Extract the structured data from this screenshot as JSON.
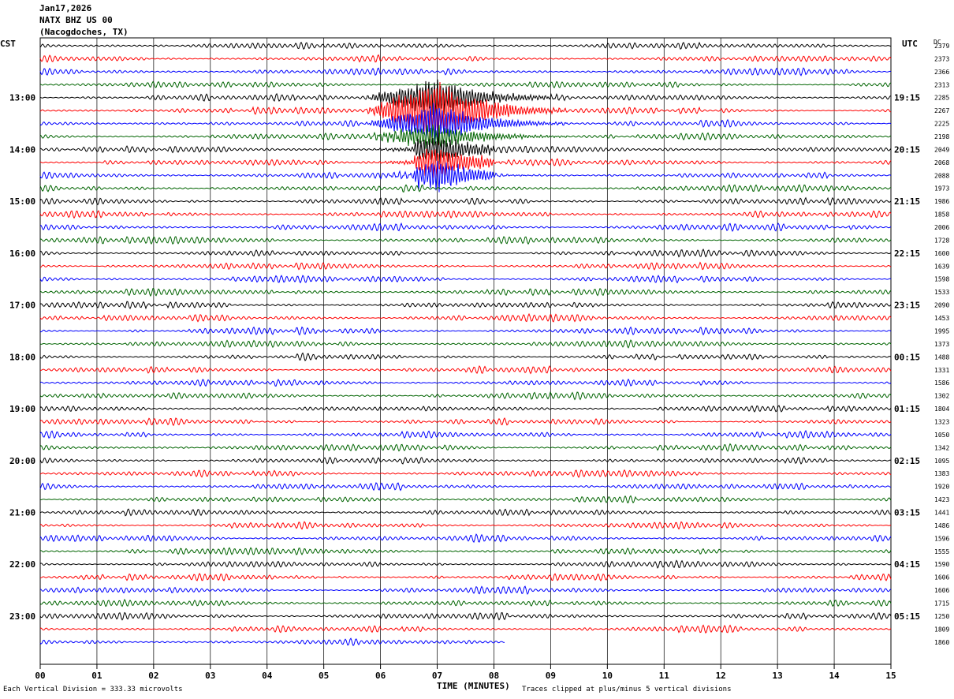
{
  "header": {
    "date": "Jan17,2026",
    "station": "NATX BHZ US 00",
    "location": "(Nacogdoches, TX)"
  },
  "left_axis_label": "CST",
  "right_axis_label": "UTC",
  "dc_label": "DC",
  "footer": {
    "scale_note": "Each Vertical Division =  333.33 microvolts",
    "x_title": "TIME (MINUTES)",
    "clip_note": "Traces clipped at plus/minus 5 vertical divisions"
  },
  "colors": {
    "trace_cycle": [
      "#000000",
      "#ff0000",
      "#0000ff",
      "#006400"
    ],
    "grid": "#000000"
  },
  "chart_data": {
    "type": "line",
    "xlabel": "TIME (MINUTES)",
    "xlim": [
      0,
      15
    ],
    "x_ticks": [
      "00",
      "01",
      "02",
      "03",
      "04",
      "05",
      "06",
      "07",
      "08",
      "09",
      "10",
      "11",
      "12",
      "13",
      "14",
      "15"
    ],
    "left_hour_labels": [
      "13:00",
      "14:00",
      "15:00",
      "16:00",
      "17:00",
      "18:00",
      "19:00",
      "20:00",
      "21:00",
      "22:00",
      "23:00"
    ],
    "right_hour_labels": [
      "19:15",
      "20:15",
      "21:15",
      "22:15",
      "23:15",
      "00:15",
      "01:15",
      "02:15",
      "03:15",
      "04:15",
      "05:15"
    ],
    "traces_per_hour": 4,
    "first_trace_offset_from_hour": -4,
    "trace_count": 47,
    "last_trace_end_minute": 8.2,
    "dc_values": [
      "2379",
      "2373",
      "2366",
      "2313",
      "2285",
      "2267",
      "2225",
      "2198",
      "2049",
      "2068",
      "2088",
      "1973",
      "1986",
      "1858",
      "2006",
      "1728",
      "1600",
      "1639",
      "1598",
      "1533",
      "2090",
      "1453",
      "1995",
      "1373",
      "1488",
      "1331",
      "1586",
      "1302",
      "1804",
      "1323",
      "1050",
      "1342",
      "1095",
      "1383",
      "1920",
      "1423",
      "1441",
      "1486",
      "1596",
      "1555",
      "1590",
      "1606",
      "1606",
      "1715",
      "1250",
      "1809",
      "1860"
    ],
    "event": {
      "description_visible": false,
      "start_minute": 5.7,
      "peak_minute": 7.0,
      "end_minute": 9.3,
      "trace_indices": [
        4,
        5,
        6,
        7,
        8,
        9,
        10
      ]
    }
  }
}
